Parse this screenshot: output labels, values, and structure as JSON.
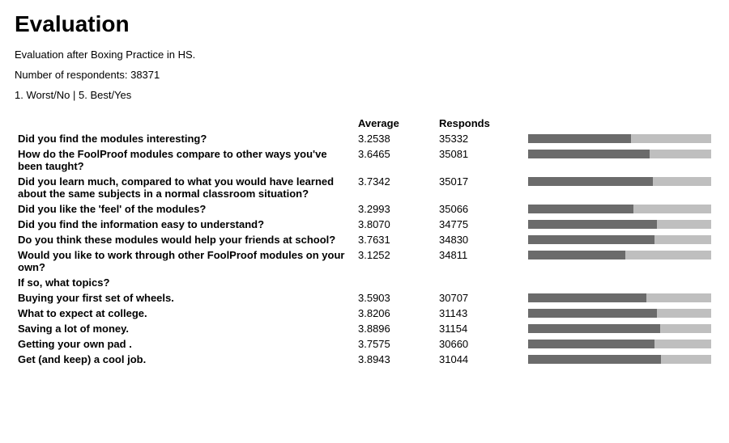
{
  "title": "Evaluation",
  "subtitle": "Evaluation after Boxing Practice in HS.",
  "respondents_label": "Number of respondents:",
  "respondents_value": "38371",
  "scale_note": "1. Worst/No | 5. Best/Yes",
  "columns": {
    "question": "",
    "average": "Average",
    "responds": "Responds",
    "bar": ""
  },
  "scale": {
    "min": 1,
    "max": 5
  },
  "bar_colors": {
    "track": "#bfbfbf",
    "fill": "#6b6b6b"
  },
  "rows": [
    {
      "question": "Did you find the modules interesting?",
      "average": "3.2538",
      "responds": "35332",
      "has_bar": true
    },
    {
      "question": "How do the FoolProof modules compare to other ways you've been taught?",
      "average": "3.6465",
      "responds": "35081",
      "has_bar": true
    },
    {
      "question": "Did you learn much, compared to what you would have learned about the same subjects in a normal classroom situation?",
      "average": "3.7342",
      "responds": "35017",
      "has_bar": true
    },
    {
      "question": "Did you like the 'feel' of the modules?",
      "average": "3.2993",
      "responds": "35066",
      "has_bar": true
    },
    {
      "question": "Did you find the information easy to understand?",
      "average": "3.8070",
      "responds": "34775",
      "has_bar": true
    },
    {
      "question": "Do you think these modules would help your friends at school?",
      "average": "3.7631",
      "responds": "34830",
      "has_bar": true
    },
    {
      "question": "Would you like to work through other FoolProof modules on your own?",
      "average": "3.1252",
      "responds": "34811",
      "has_bar": true
    },
    {
      "question": "If so, what topics?",
      "average": "",
      "responds": "",
      "has_bar": false
    },
    {
      "question": "Buying your first set of wheels.",
      "average": "3.5903",
      "responds": "30707",
      "has_bar": true
    },
    {
      "question": "What to expect at college.",
      "average": "3.8206",
      "responds": "31143",
      "has_bar": true
    },
    {
      "question": "Saving a lot of money.",
      "average": "3.8896",
      "responds": "31154",
      "has_bar": true
    },
    {
      "question": "Getting your own pad .",
      "average": "3.7575",
      "responds": "30660",
      "has_bar": true
    },
    {
      "question": "Get (and keep) a cool job.",
      "average": "3.8943",
      "responds": "31044",
      "has_bar": true
    }
  ]
}
